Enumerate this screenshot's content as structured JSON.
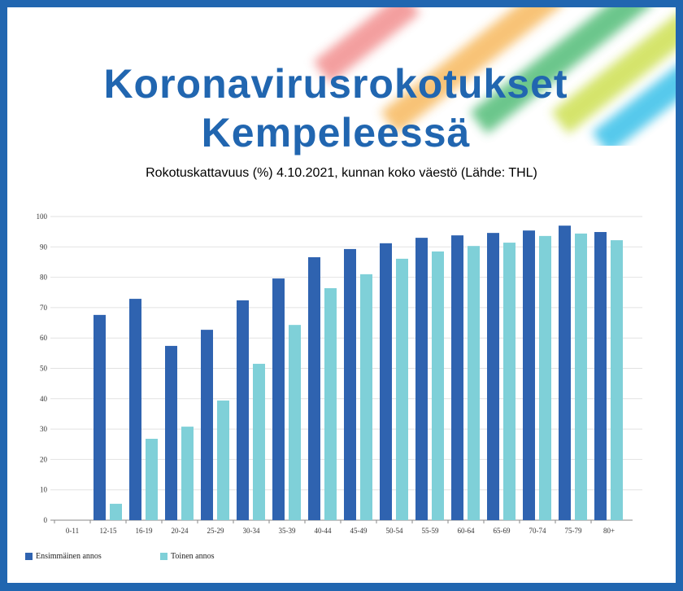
{
  "header": {
    "title_line1": "Koronavirusrokotukset",
    "title_line2": "Kempeleessä",
    "subtitle": "Rokotuskattavuus (%) 4.10.2021, kunnan koko väestö (Lähde: THL)"
  },
  "colors": {
    "border": "#2166b0",
    "first_dose": "#2f63b0",
    "second_dose": "#7fd0d8"
  },
  "chart_data": {
    "type": "bar",
    "categories": [
      "0-11",
      "12-15",
      "16-19",
      "20-24",
      "25-29",
      "30-34",
      "35-39",
      "40-44",
      "45-49",
      "50-54",
      "55-59",
      "60-64",
      "65-69",
      "70-74",
      "75-79",
      "80+"
    ],
    "series": [
      {
        "name": "Ensimmäinen annos",
        "color": "#2f63b0",
        "values": [
          null,
          67.6,
          72.9,
          57.4,
          62.7,
          72.4,
          79.6,
          86.6,
          89.3,
          91.2,
          93.0,
          93.8,
          94.6,
          95.4,
          97.0,
          94.9
        ]
      },
      {
        "name": "Toinen annos",
        "color": "#7fd0d8",
        "values": [
          null,
          5.4,
          26.8,
          30.8,
          39.4,
          51.5,
          64.3,
          76.4,
          81.0,
          86.1,
          88.5,
          90.3,
          91.4,
          93.6,
          94.4,
          92.2
        ]
      }
    ],
    "yticks": [
      "0",
      "10",
      "20",
      "30",
      "40",
      "50",
      "60",
      "70",
      "80",
      "90",
      "100"
    ],
    "ylim": [
      0,
      100
    ],
    "grid": true,
    "legend": "bottom-left"
  }
}
